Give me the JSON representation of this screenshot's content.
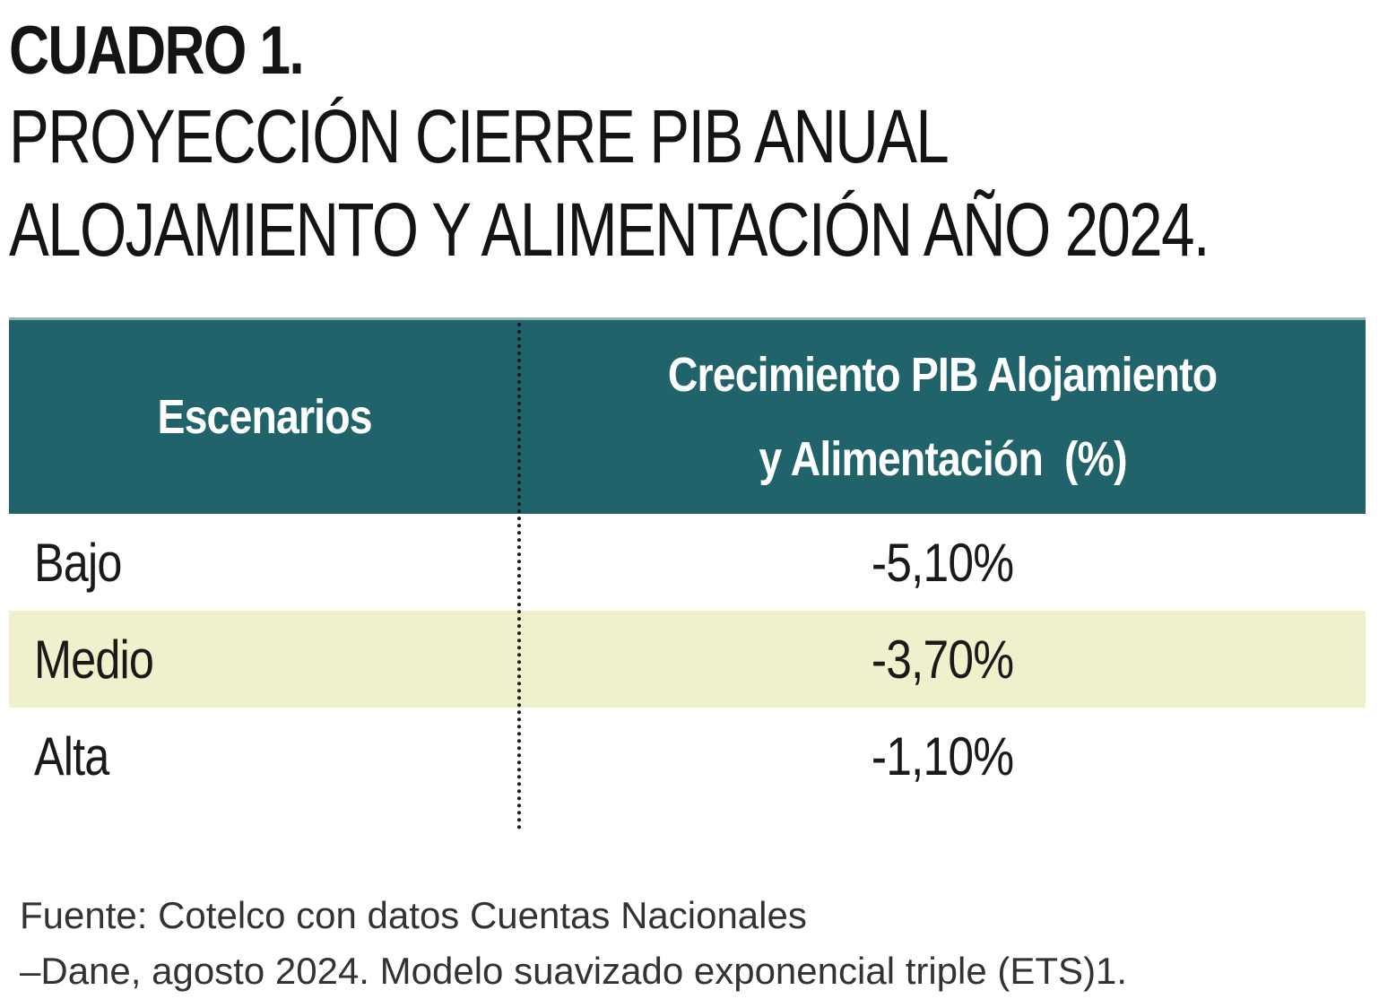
{
  "title": {
    "label": "CUADRO 1.",
    "line1": "PROYECCIÓN CIERRE PIB ANUAL",
    "line2": "ALOJAMIENTO Y ALIMENTACIÓN AÑO 2024."
  },
  "table": {
    "header": {
      "col1": "Escenarios",
      "col2_line1": "Crecimiento PIB Alojamiento",
      "col2_line2": "y Alimentación  (%)"
    },
    "rows": [
      {
        "scenario": "Bajo",
        "value": "-5,10%"
      },
      {
        "scenario": "Medio",
        "value": "-3,70%"
      },
      {
        "scenario": "Alta",
        "value": "-1,10%"
      }
    ]
  },
  "source": {
    "line1": "Fuente: Cotelco con datos Cuentas Nacionales",
    "line2": "–Dane, agosto 2024. Modelo suavizado exponencial triple (ETS)1."
  },
  "colors": {
    "header_bg": "#21636a",
    "header_text": "#ffffff",
    "alt_row_bg": "#f0f0cc",
    "text": "#1a1a1a"
  }
}
